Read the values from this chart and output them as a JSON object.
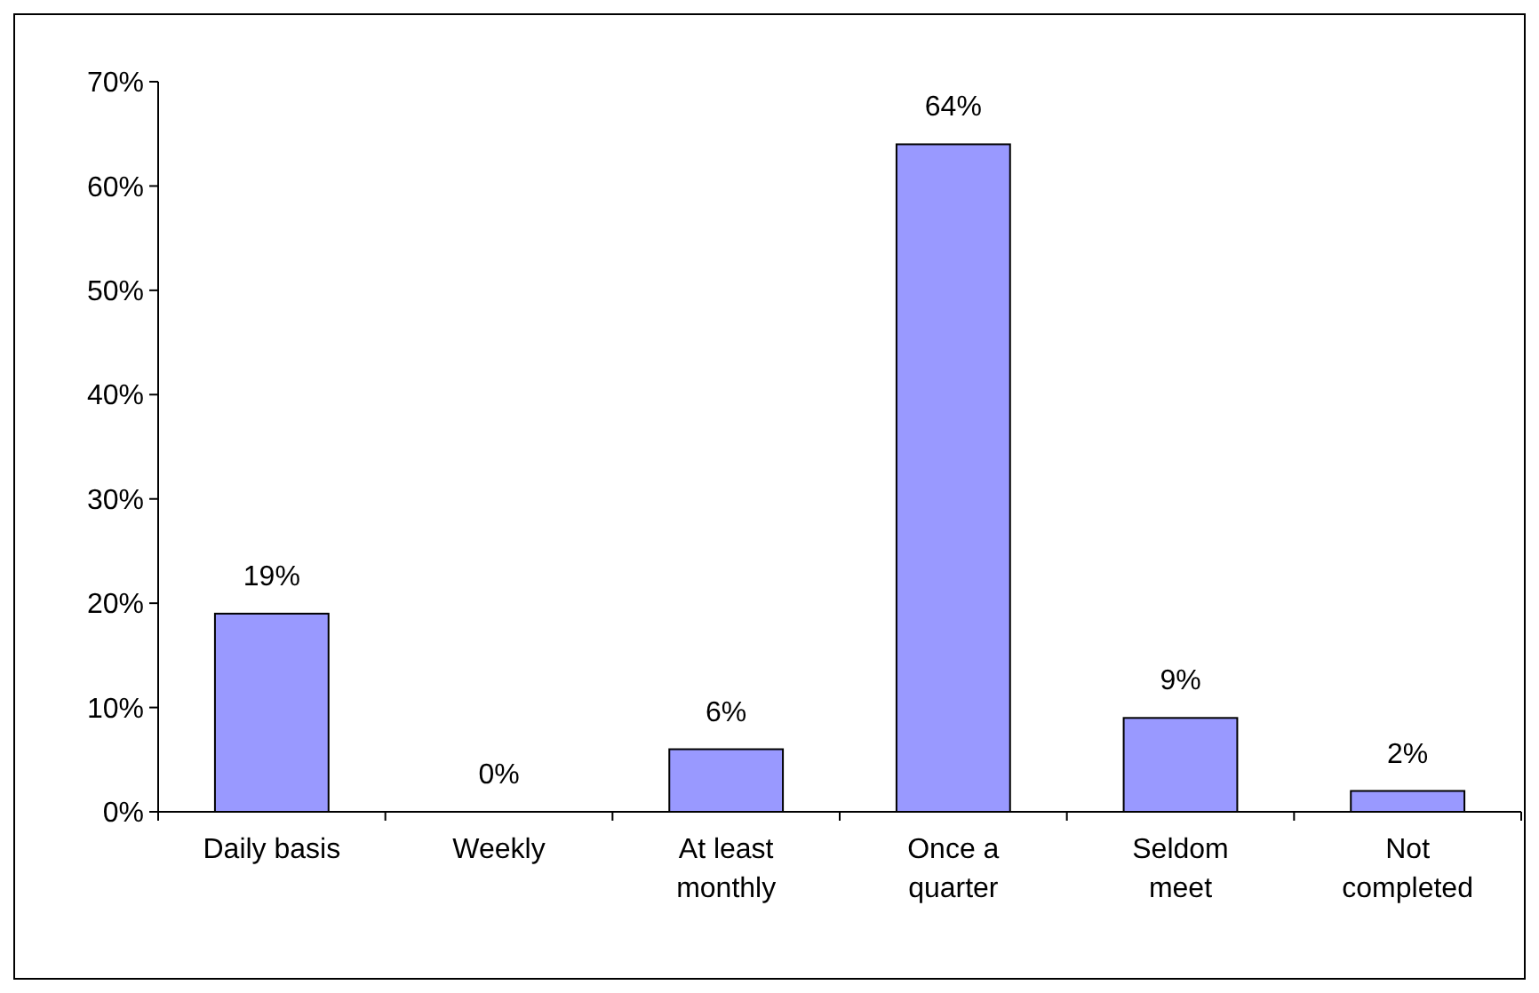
{
  "chart_data": {
    "type": "bar",
    "categories": [
      "Daily basis",
      "Weekly",
      "At least\nmonthly",
      "Once a\nquarter",
      "Seldom\nmeet",
      "Not\ncompleted"
    ],
    "values": [
      19,
      0,
      6,
      64,
      9,
      2
    ],
    "value_labels": [
      "19%",
      "0%",
      "6%",
      "64%",
      "9%",
      "2%"
    ],
    "color": "#9999ff",
    "ylim": [
      0,
      70
    ],
    "yticks": [
      {
        "value": 0,
        "label": "0%"
      },
      {
        "value": 10,
        "label": "10%"
      },
      {
        "value": 20,
        "label": "20%"
      },
      {
        "value": 30,
        "label": "30%"
      },
      {
        "value": 40,
        "label": "40%"
      },
      {
        "value": 50,
        "label": "50%"
      },
      {
        "value": 60,
        "label": "60%"
      },
      {
        "value": 70,
        "label": "70%"
      }
    ],
    "grid": false
  }
}
